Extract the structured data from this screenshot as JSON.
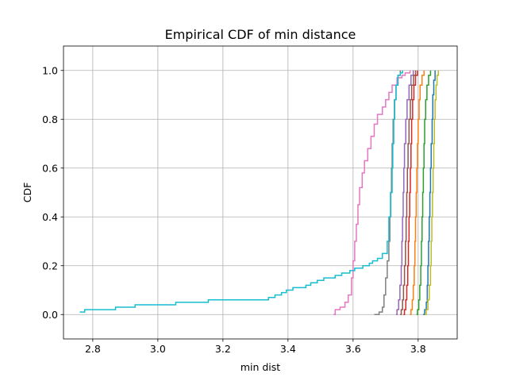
{
  "chart_data": {
    "type": "line",
    "title": "Empirical CDF of min distance",
    "xlabel": "min dist",
    "ylabel": "CDF",
    "xlim": [
      2.71,
      3.92
    ],
    "ylim": [
      -0.1,
      1.1
    ],
    "xticks": [
      "2.8",
      "3.0",
      "3.2",
      "3.4",
      "3.6",
      "3.8"
    ],
    "yticks": [
      "0.0",
      "0.2",
      "0.4",
      "0.6",
      "0.8",
      "1.0"
    ],
    "grid": true,
    "series": [
      {
        "color": "#1f77b4",
        "points": [
          [
            3.815,
            0.0
          ],
          [
            3.82,
            0.02
          ],
          [
            3.825,
            0.05
          ],
          [
            3.828,
            0.12
          ],
          [
            3.83,
            0.2
          ],
          [
            3.832,
            0.3
          ],
          [
            3.834,
            0.4
          ],
          [
            3.836,
            0.5
          ],
          [
            3.838,
            0.6
          ],
          [
            3.84,
            0.7
          ],
          [
            3.843,
            0.8
          ],
          [
            3.845,
            0.9
          ],
          [
            3.848,
            0.96
          ],
          [
            3.852,
            1.0
          ]
        ]
      },
      {
        "color": "#ff7f0e",
        "points": [
          [
            3.775,
            0.0
          ],
          [
            3.778,
            0.02
          ],
          [
            3.782,
            0.06
          ],
          [
            3.785,
            0.12
          ],
          [
            3.788,
            0.2
          ],
          [
            3.79,
            0.3
          ],
          [
            3.792,
            0.4
          ],
          [
            3.794,
            0.5
          ],
          [
            3.796,
            0.6
          ],
          [
            3.798,
            0.7
          ],
          [
            3.8,
            0.8
          ],
          [
            3.803,
            0.88
          ],
          [
            3.806,
            0.94
          ],
          [
            3.812,
            0.98
          ],
          [
            3.818,
            1.0
          ]
        ]
      },
      {
        "color": "#2ca02c",
        "points": [
          [
            3.795,
            0.0
          ],
          [
            3.798,
            0.02
          ],
          [
            3.802,
            0.06
          ],
          [
            3.805,
            0.12
          ],
          [
            3.808,
            0.2
          ],
          [
            3.81,
            0.3
          ],
          [
            3.812,
            0.4
          ],
          [
            3.814,
            0.5
          ],
          [
            3.816,
            0.6
          ],
          [
            3.818,
            0.7
          ],
          [
            3.82,
            0.8
          ],
          [
            3.823,
            0.88
          ],
          [
            3.827,
            0.94
          ],
          [
            3.832,
            0.98
          ],
          [
            3.838,
            1.0
          ]
        ]
      },
      {
        "color": "#d62728",
        "points": [
          [
            3.755,
            0.0
          ],
          [
            3.758,
            0.02
          ],
          [
            3.762,
            0.06
          ],
          [
            3.765,
            0.12
          ],
          [
            3.768,
            0.2
          ],
          [
            3.77,
            0.3
          ],
          [
            3.772,
            0.4
          ],
          [
            3.774,
            0.5
          ],
          [
            3.776,
            0.6
          ],
          [
            3.778,
            0.7
          ],
          [
            3.78,
            0.8
          ],
          [
            3.783,
            0.88
          ],
          [
            3.787,
            0.94
          ],
          [
            3.792,
            0.98
          ],
          [
            3.798,
            1.0
          ]
        ]
      },
      {
        "color": "#9467bd",
        "points": [
          [
            3.732,
            0.0
          ],
          [
            3.735,
            0.02
          ],
          [
            3.74,
            0.06
          ],
          [
            3.744,
            0.12
          ],
          [
            3.748,
            0.2
          ],
          [
            3.75,
            0.3
          ],
          [
            3.752,
            0.4
          ],
          [
            3.754,
            0.5
          ],
          [
            3.756,
            0.6
          ],
          [
            3.758,
            0.7
          ],
          [
            3.762,
            0.8
          ],
          [
            3.766,
            0.88
          ],
          [
            3.772,
            0.94
          ],
          [
            3.778,
            0.98
          ],
          [
            3.785,
            1.0
          ]
        ]
      },
      {
        "color": "#8c564b",
        "points": [
          [
            3.745,
            0.0
          ],
          [
            3.748,
            0.02
          ],
          [
            3.752,
            0.06
          ],
          [
            3.755,
            0.12
          ],
          [
            3.758,
            0.2
          ],
          [
            3.761,
            0.3
          ],
          [
            3.763,
            0.4
          ],
          [
            3.765,
            0.5
          ],
          [
            3.767,
            0.6
          ],
          [
            3.769,
            0.7
          ],
          [
            3.772,
            0.8
          ],
          [
            3.776,
            0.88
          ],
          [
            3.78,
            0.94
          ],
          [
            3.786,
            0.98
          ],
          [
            3.792,
            1.0
          ]
        ]
      },
      {
        "color": "#e377c2",
        "points": [
          [
            3.54,
            0.0
          ],
          [
            3.545,
            0.02
          ],
          [
            3.56,
            0.03
          ],
          [
            3.575,
            0.05
          ],
          [
            3.585,
            0.08
          ],
          [
            3.595,
            0.15
          ],
          [
            3.6,
            0.22
          ],
          [
            3.605,
            0.3
          ],
          [
            3.61,
            0.37
          ],
          [
            3.615,
            0.45
          ],
          [
            3.62,
            0.52
          ],
          [
            3.628,
            0.58
          ],
          [
            3.635,
            0.63
          ],
          [
            3.645,
            0.68
          ],
          [
            3.655,
            0.73
          ],
          [
            3.665,
            0.78
          ],
          [
            3.675,
            0.82
          ],
          [
            3.69,
            0.85
          ],
          [
            3.7,
            0.88
          ],
          [
            3.71,
            0.91
          ],
          [
            3.72,
            0.94
          ],
          [
            3.735,
            0.97
          ],
          [
            3.75,
            0.98
          ],
          [
            3.76,
            0.99
          ],
          [
            3.775,
            1.0
          ]
        ]
      },
      {
        "color": "#7f7f7f",
        "points": [
          [
            3.665,
            0.0
          ],
          [
            3.68,
            0.01
          ],
          [
            3.69,
            0.03
          ],
          [
            3.695,
            0.08
          ],
          [
            3.7,
            0.15
          ],
          [
            3.705,
            0.22
          ],
          [
            3.71,
            0.3
          ],
          [
            3.713,
            0.4
          ],
          [
            3.716,
            0.5
          ],
          [
            3.718,
            0.6
          ],
          [
            3.72,
            0.7
          ],
          [
            3.723,
            0.8
          ],
          [
            3.727,
            0.88
          ],
          [
            3.732,
            0.94
          ],
          [
            3.738,
            0.98
          ],
          [
            3.745,
            1.0
          ]
        ]
      },
      {
        "color": "#bcbd22",
        "points": [
          [
            3.82,
            0.0
          ],
          [
            3.825,
            0.02
          ],
          [
            3.83,
            0.06
          ],
          [
            3.834,
            0.12
          ],
          [
            3.838,
            0.2
          ],
          [
            3.84,
            0.3
          ],
          [
            3.842,
            0.4
          ],
          [
            3.844,
            0.5
          ],
          [
            3.846,
            0.6
          ],
          [
            3.848,
            0.7
          ],
          [
            3.85,
            0.8
          ],
          [
            3.852,
            0.88
          ],
          [
            3.855,
            0.94
          ],
          [
            3.858,
            0.98
          ],
          [
            3.862,
            1.0
          ]
        ]
      },
      {
        "color": "#17becf",
        "points": [
          [
            2.76,
            0.01
          ],
          [
            2.775,
            0.02
          ],
          [
            2.87,
            0.03
          ],
          [
            2.93,
            0.04
          ],
          [
            3.055,
            0.05
          ],
          [
            3.155,
            0.06
          ],
          [
            3.34,
            0.07
          ],
          [
            3.36,
            0.08
          ],
          [
            3.38,
            0.09
          ],
          [
            3.395,
            0.1
          ],
          [
            3.415,
            0.11
          ],
          [
            3.455,
            0.12
          ],
          [
            3.47,
            0.13
          ],
          [
            3.49,
            0.14
          ],
          [
            3.51,
            0.15
          ],
          [
            3.545,
            0.16
          ],
          [
            3.565,
            0.17
          ],
          [
            3.59,
            0.18
          ],
          [
            3.605,
            0.19
          ],
          [
            3.63,
            0.2
          ],
          [
            3.65,
            0.21
          ],
          [
            3.66,
            0.22
          ],
          [
            3.675,
            0.23
          ],
          [
            3.69,
            0.25
          ],
          [
            3.705,
            0.3
          ],
          [
            3.71,
            0.4
          ],
          [
            3.715,
            0.5
          ],
          [
            3.72,
            0.6
          ],
          [
            3.722,
            0.7
          ],
          [
            3.725,
            0.8
          ],
          [
            3.728,
            0.88
          ],
          [
            3.732,
            0.94
          ],
          [
            3.738,
            0.98
          ],
          [
            3.745,
            0.99
          ],
          [
            3.752,
            1.0
          ]
        ]
      }
    ]
  }
}
